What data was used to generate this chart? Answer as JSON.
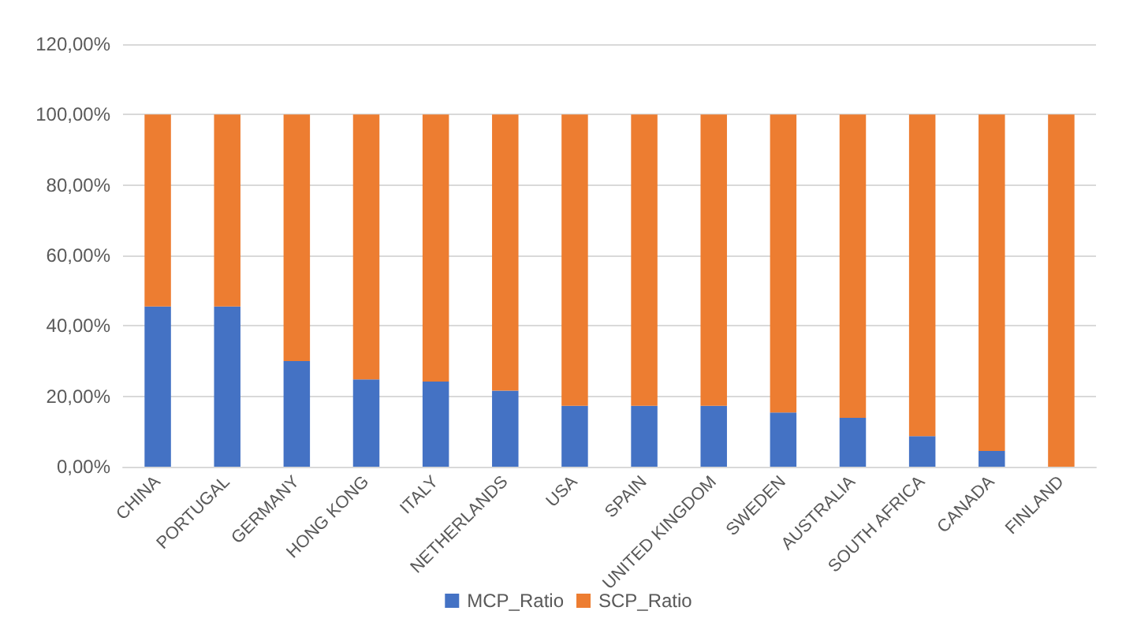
{
  "chart_data": {
    "type": "bar",
    "stacked": true,
    "categories": [
      "CHINA",
      "PORTUGAL",
      "GERMANY",
      "HONG KONG",
      "ITALY",
      "NETHERLANDS",
      "USA",
      "SPAIN",
      "UNITED KINGDOM",
      "SWEDEN",
      "AUSTRALIA",
      "SOUTH AFRICA",
      "CANADA",
      "FINLAND"
    ],
    "series": [
      {
        "name": "MCP_Ratio",
        "color": "#4472c4",
        "values": [
          45.5,
          45.5,
          30.0,
          24.8,
          24.2,
          21.6,
          17.3,
          17.3,
          17.3,
          15.4,
          13.9,
          8.7,
          4.5,
          0
        ]
      },
      {
        "name": "SCP_Ratio",
        "color": "#ed7d31",
        "values": [
          54.5,
          54.5,
          70.0,
          75.2,
          75.8,
          78.4,
          82.7,
          82.7,
          82.7,
          84.6,
          86.1,
          91.3,
          95.5,
          100
        ]
      }
    ],
    "ylim": [
      0,
      120
    ],
    "yticks": [
      {
        "value": 0,
        "label": "0,00%"
      },
      {
        "value": 20,
        "label": "20,00%"
      },
      {
        "value": 40,
        "label": "40,00%"
      },
      {
        "value": 60,
        "label": "60,00%"
      },
      {
        "value": 80,
        "label": "80,00%"
      },
      {
        "value": 100,
        "label": "100,00%"
      },
      {
        "value": 120,
        "label": "120,00%"
      }
    ],
    "grid": "y",
    "legend": "bottom"
  }
}
